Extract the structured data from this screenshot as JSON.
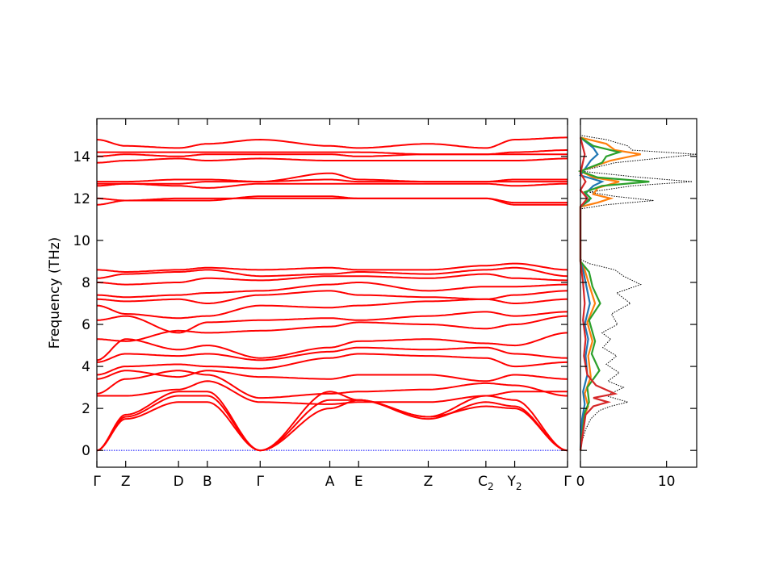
{
  "chart_data": [
    {
      "type": "line",
      "title": "",
      "ylabel": "Frequency (THz)",
      "xlabel": "",
      "ylim": [
        -0.8,
        15.8
      ],
      "yticks": [
        0,
        2,
        4,
        6,
        8,
        10,
        12,
        14
      ],
      "grid": false,
      "line_color": "#ff0000",
      "zero_line_color": "#0000ff",
      "xticks": [
        {
          "label": "Γ",
          "sub": "",
          "pos": 0.0
        },
        {
          "label": "Z",
          "sub": "",
          "pos": 0.6
        },
        {
          "label": "D",
          "sub": "",
          "pos": 1.7
        },
        {
          "label": "B",
          "sub": "",
          "pos": 2.3
        },
        {
          "label": "Γ",
          "sub": "",
          "pos": 3.4
        },
        {
          "label": "A",
          "sub": "",
          "pos": 4.85
        },
        {
          "label": "E",
          "sub": "",
          "pos": 5.45
        },
        {
          "label": "Z",
          "sub": "",
          "pos": 6.9
        },
        {
          "label": "C",
          "sub": "2",
          "pos": 8.1
        },
        {
          "label": "Y",
          "sub": "2",
          "pos": 8.7
        },
        {
          "label": "Γ",
          "sub": "",
          "pos": 9.8
        }
      ],
      "segments": [
        {
          "from": "Γ",
          "to": "Z",
          "x": [
            0.0,
            0.6
          ]
        },
        {
          "from": "Z",
          "to": "D",
          "x": [
            0.6,
            1.7
          ]
        },
        {
          "from": "D",
          "to": "B",
          "x": [
            1.7,
            2.3
          ]
        },
        {
          "from": "B",
          "to": "Γ",
          "x": [
            2.3,
            3.4
          ]
        },
        {
          "from": "Γ",
          "to": "A",
          "x": [
            3.4,
            4.85
          ]
        },
        {
          "from": "A",
          "to": "E",
          "x": [
            4.85,
            5.45
          ]
        },
        {
          "from": "E",
          "to": "Z",
          "x": [
            5.45,
            6.9
          ]
        },
        {
          "from": "Z",
          "to": "C2",
          "x": [
            6.9,
            8.1
          ]
        },
        {
          "from": "C2",
          "to": "Y2",
          "x": [
            8.1,
            8.7
          ]
        },
        {
          "from": "Y2",
          "to": "Γ",
          "x": [
            8.7,
            9.8
          ]
        }
      ],
      "bands": [
        [
          0,
          1.6,
          2.6,
          2.6,
          0,
          2.4,
          2.4,
          1.5,
          2.3,
          2.1,
          0
        ],
        [
          0,
          1.5,
          2.3,
          2.3,
          0,
          2.0,
          2.4,
          1.6,
          2.1,
          2.0,
          0
        ],
        [
          0,
          1.7,
          2.8,
          2.8,
          0,
          2.8,
          2.4,
          1.6,
          2.6,
          2.4,
          0
        ],
        [
          2.6,
          2.6,
          2.9,
          3.3,
          2.3,
          2.2,
          2.3,
          2.3,
          2.6,
          2.8,
          2.8
        ],
        [
          2.7,
          3.4,
          3.8,
          3.6,
          2.5,
          2.7,
          2.8,
          2.9,
          3.2,
          3.1,
          2.6
        ],
        [
          3.4,
          3.8,
          3.5,
          3.8,
          3.5,
          3.4,
          3.6,
          3.6,
          3.3,
          3.6,
          3.4
        ],
        [
          3.6,
          4.0,
          4.1,
          4.0,
          3.9,
          4.4,
          4.6,
          4.5,
          4.4,
          4.0,
          4.2
        ],
        [
          4.2,
          4.6,
          4.5,
          4.6,
          4.3,
          4.7,
          4.9,
          4.8,
          4.9,
          4.6,
          4.4
        ],
        [
          4.3,
          5.3,
          4.8,
          5.0,
          4.4,
          4.9,
          5.2,
          5.3,
          5.1,
          5.0,
          5.6
        ],
        [
          5.3,
          5.2,
          5.7,
          5.6,
          5.7,
          5.9,
          6.1,
          6.0,
          5.8,
          6.0,
          6.4
        ],
        [
          6.2,
          6.4,
          5.6,
          6.1,
          6.2,
          6.3,
          6.2,
          6.4,
          6.6,
          6.4,
          6.6
        ],
        [
          6.9,
          6.5,
          6.3,
          6.4,
          6.9,
          6.8,
          6.9,
          7.1,
          7.2,
          7.0,
          7.2
        ],
        [
          7.2,
          7.1,
          7.2,
          7.0,
          7.4,
          7.6,
          7.4,
          7.3,
          7.2,
          7.4,
          7.6
        ],
        [
          7.4,
          7.3,
          7.4,
          7.5,
          7.6,
          7.9,
          8.0,
          7.6,
          7.8,
          7.8,
          7.9
        ],
        [
          8.0,
          7.9,
          8.0,
          8.2,
          8.1,
          8.3,
          8.3,
          8.2,
          8.4,
          8.2,
          8.1
        ],
        [
          8.2,
          8.4,
          8.5,
          8.6,
          8.3,
          8.4,
          8.5,
          8.4,
          8.6,
          8.7,
          8.3
        ],
        [
          8.6,
          8.5,
          8.6,
          8.7,
          8.6,
          8.7,
          8.6,
          8.6,
          8.8,
          8.9,
          8.6
        ],
        [
          11.7,
          11.9,
          11.9,
          11.9,
          12.1,
          12.1,
          12.0,
          12.0,
          12.0,
          11.8,
          11.8
        ],
        [
          12.0,
          11.9,
          12.0,
          12.0,
          12.0,
          12.0,
          12.0,
          12.0,
          12.0,
          11.7,
          11.7
        ],
        [
          12.6,
          12.7,
          12.6,
          12.5,
          12.7,
          12.7,
          12.7,
          12.7,
          12.7,
          12.6,
          12.7
        ],
        [
          12.7,
          12.7,
          12.7,
          12.8,
          12.8,
          12.9,
          12.8,
          12.8,
          12.8,
          12.8,
          12.8
        ],
        [
          12.8,
          12.8,
          12.9,
          12.9,
          12.8,
          13.2,
          12.9,
          12.8,
          12.8,
          12.9,
          12.9
        ],
        [
          13.7,
          13.8,
          13.9,
          13.8,
          13.9,
          13.8,
          13.8,
          13.8,
          13.8,
          13.8,
          13.9
        ],
        [
          14.0,
          14.1,
          14.0,
          14.1,
          14.1,
          14.1,
          14.0,
          14.1,
          14.1,
          14.1,
          14.1
        ],
        [
          14.2,
          14.2,
          14.2,
          14.2,
          14.2,
          14.2,
          14.2,
          14.1,
          14.1,
          14.2,
          14.3
        ],
        [
          14.8,
          14.5,
          14.4,
          14.6,
          14.8,
          14.5,
          14.4,
          14.6,
          14.4,
          14.8,
          14.9
        ]
      ]
    },
    {
      "type": "line",
      "title": "",
      "xlabel": "",
      "ylabel": "",
      "xlim": [
        0,
        13.5
      ],
      "ylim": [
        -0.8,
        15.8
      ],
      "xticks": [
        0,
        10
      ],
      "grid": false,
      "orientation": "horizontal",
      "series": [
        {
          "color": "#000000",
          "style": "dotted",
          "points": [
            [
              0,
              -0.1
            ],
            [
              0.1,
              0.3
            ],
            [
              0.6,
              1.0
            ],
            [
              1.2,
              1.5
            ],
            [
              2.2,
              1.9
            ],
            [
              3.5,
              2.1
            ],
            [
              5.5,
              2.3
            ],
            [
              3.0,
              2.6
            ],
            [
              5.0,
              3.0
            ],
            [
              3.2,
              3.3
            ],
            [
              4.5,
              3.7
            ],
            [
              3.0,
              4.1
            ],
            [
              4.2,
              4.5
            ],
            [
              2.6,
              4.9
            ],
            [
              3.5,
              5.3
            ],
            [
              2.5,
              5.6
            ],
            [
              4.3,
              6.0
            ],
            [
              3.6,
              6.5
            ],
            [
              5.8,
              7.0
            ],
            [
              4.2,
              7.5
            ],
            [
              7.0,
              7.9
            ],
            [
              5.0,
              8.3
            ],
            [
              4.0,
              8.6
            ],
            [
              1.0,
              8.9
            ],
            [
              0,
              9.1
            ],
            [
              0,
              11.5
            ],
            [
              3.0,
              11.7
            ],
            [
              8.5,
              11.9
            ],
            [
              4.0,
              12.1
            ],
            [
              1.0,
              12.3
            ],
            [
              6.0,
              12.6
            ],
            [
              13.0,
              12.8
            ],
            [
              7.0,
              13.0
            ],
            [
              0,
              13.3
            ],
            [
              4.0,
              13.7
            ],
            [
              13.5,
              14.1
            ],
            [
              6.0,
              14.3
            ],
            [
              5.5,
              14.5
            ],
            [
              3.0,
              14.8
            ],
            [
              0,
              15.0
            ]
          ]
        },
        {
          "color": "#ff7f0e",
          "style": "solid",
          "points": [
            [
              0,
              0
            ],
            [
              0.3,
              1.5
            ],
            [
              0.9,
              2.1
            ],
            [
              0.5,
              2.7
            ],
            [
              1.2,
              3.5
            ],
            [
              0.9,
              4.5
            ],
            [
              1.4,
              5.2
            ],
            [
              0.8,
              6.1
            ],
            [
              1.7,
              7.0
            ],
            [
              1.0,
              7.9
            ],
            [
              0.5,
              8.6
            ],
            [
              0,
              9.0
            ],
            [
              0,
              11.6
            ],
            [
              2.0,
              11.8
            ],
            [
              3.5,
              12.0
            ],
            [
              1.5,
              12.2
            ],
            [
              2.0,
              12.5
            ],
            [
              4.5,
              12.8
            ],
            [
              1.5,
              13.0
            ],
            [
              0,
              13.3
            ],
            [
              3.5,
              13.8
            ],
            [
              7.0,
              14.1
            ],
            [
              4.0,
              14.3
            ],
            [
              3.0,
              14.6
            ],
            [
              0,
              14.9
            ]
          ]
        },
        {
          "color": "#1f77b4",
          "style": "solid",
          "points": [
            [
              0,
              0
            ],
            [
              0.2,
              1.5
            ],
            [
              0.5,
              2.2
            ],
            [
              0.3,
              2.8
            ],
            [
              0.8,
              3.6
            ],
            [
              0.6,
              4.5
            ],
            [
              0.9,
              5.3
            ],
            [
              0.5,
              6.0
            ],
            [
              1.1,
              7.0
            ],
            [
              0.6,
              8.0
            ],
            [
              0.3,
              8.6
            ],
            [
              0,
              9.0
            ],
            [
              0,
              11.6
            ],
            [
              1.0,
              11.9
            ],
            [
              0.5,
              12.2
            ],
            [
              1.5,
              12.6
            ],
            [
              2.5,
              12.8
            ],
            [
              0,
              13.1
            ],
            [
              1.2,
              13.8
            ],
            [
              2.0,
              14.1
            ],
            [
              1.5,
              14.4
            ],
            [
              0,
              14.9
            ]
          ]
        },
        {
          "color": "#2ca02c",
          "style": "solid",
          "points": [
            [
              0,
              0
            ],
            [
              0.5,
              1.8
            ],
            [
              1.0,
              2.3
            ],
            [
              0.8,
              3.0
            ],
            [
              2.2,
              3.8
            ],
            [
              1.3,
              4.6
            ],
            [
              1.7,
              5.2
            ],
            [
              1.0,
              6.2
            ],
            [
              2.3,
              7.0
            ],
            [
              1.4,
              7.8
            ],
            [
              1.0,
              8.5
            ],
            [
              0,
              9.0
            ],
            [
              0,
              11.6
            ],
            [
              1.2,
              12.0
            ],
            [
              0.5,
              12.3
            ],
            [
              2.5,
              12.6
            ],
            [
              8.0,
              12.8
            ],
            [
              2.0,
              13.0
            ],
            [
              0,
              13.3
            ],
            [
              2.5,
              13.7
            ],
            [
              3.0,
              14.0
            ],
            [
              4.5,
              14.2
            ],
            [
              1.5,
              14.5
            ],
            [
              0,
              14.9
            ]
          ]
        },
        {
          "color": "#d62728",
          "style": "solid",
          "points": [
            [
              0,
              0
            ],
            [
              0.6,
              1.7
            ],
            [
              1.5,
              2.1
            ],
            [
              3.2,
              2.3
            ],
            [
              1.5,
              2.5
            ],
            [
              4.0,
              2.7
            ],
            [
              1.8,
              3.1
            ],
            [
              0.8,
              3.6
            ],
            [
              0.4,
              4.5
            ],
            [
              0.6,
              5.3
            ],
            [
              0.3,
              6.2
            ],
            [
              0.5,
              7.0
            ],
            [
              0.3,
              8.0
            ],
            [
              0,
              9.0
            ],
            [
              0,
              11.6
            ],
            [
              0.8,
              12.0
            ],
            [
              0,
              12.4
            ],
            [
              0.6,
              12.8
            ],
            [
              0,
              13.2
            ],
            [
              0.5,
              14.1
            ],
            [
              0,
              14.9
            ]
          ]
        }
      ]
    }
  ]
}
